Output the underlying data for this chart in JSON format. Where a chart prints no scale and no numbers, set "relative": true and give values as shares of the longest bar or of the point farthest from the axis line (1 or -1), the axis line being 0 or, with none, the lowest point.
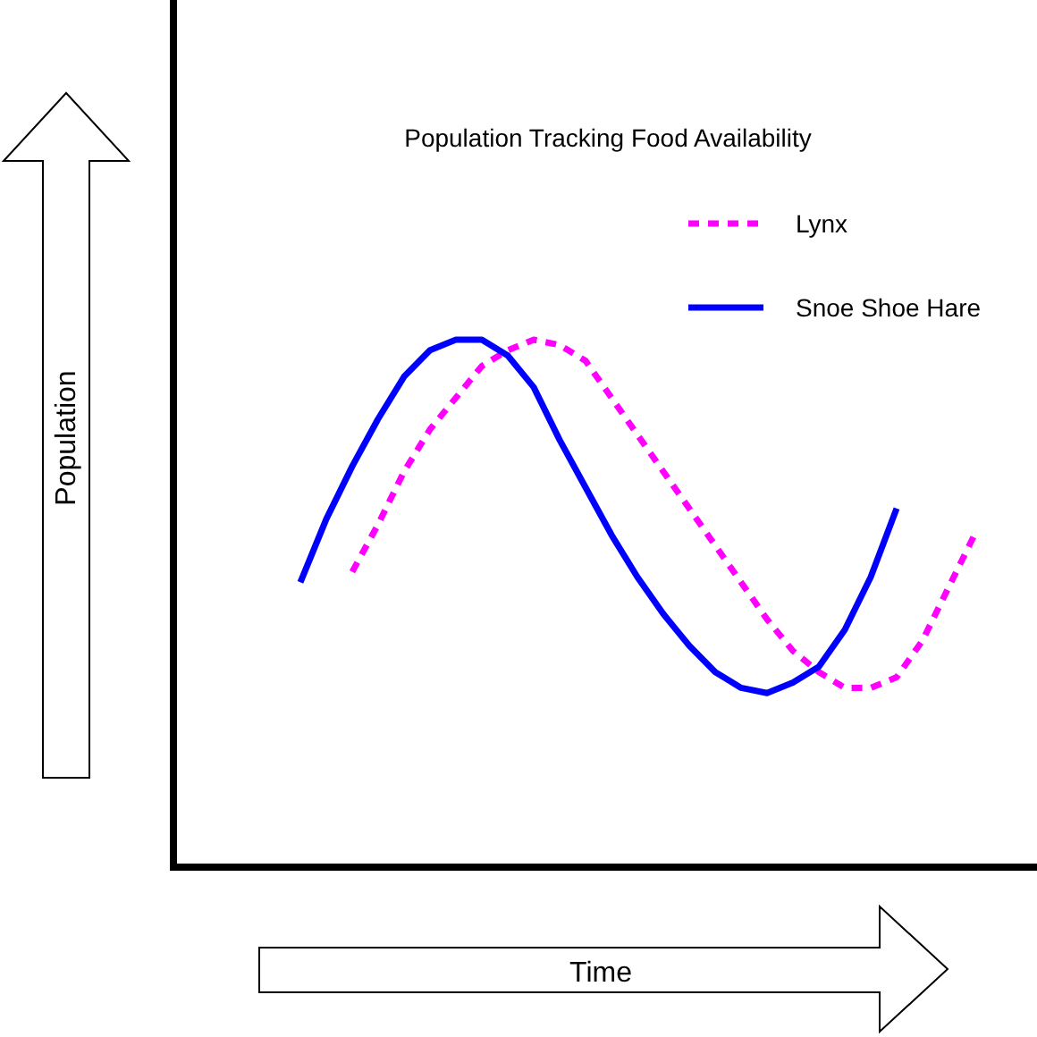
{
  "chart_data": {
    "type": "line",
    "title": "Population Tracking Food Availability",
    "xlabel": "Time",
    "annotations": [
      "Population"
    ],
    "relative": true,
    "legend": "top right",
    "marker": "none",
    "categories": [
      null,
      null,
      null,
      null,
      null,
      null,
      null,
      null,
      null,
      null,
      null,
      null,
      null,
      null,
      null,
      null,
      null,
      null,
      null,
      null,
      null,
      null,
      null,
      null,
      null,
      null,
      null
    ],
    "series": [
      {
        "name": "Lynx",
        "color": "#ff00ff",
        "line_style": "dotted",
        "values": [
          null,
          null,
          0.56,
          0.65,
          0.75,
          0.83,
          0.89,
          0.95,
          0.98,
          1.0,
          0.99,
          0.96,
          0.89,
          0.82,
          0.75,
          0.68,
          0.61,
          0.54,
          0.47,
          0.41,
          0.37,
          0.34,
          0.34,
          0.36,
          0.43,
          0.53,
          0.63
        ]
      },
      {
        "name": "Snoe Shoe Hare",
        "color": "#0000ff",
        "line_style": "solid",
        "values": [
          0.54,
          0.66,
          0.76,
          0.85,
          0.93,
          0.98,
          1.0,
          1.0,
          0.97,
          0.91,
          0.81,
          0.72,
          0.63,
          0.55,
          0.48,
          0.42,
          0.37,
          0.34,
          0.33,
          0.35,
          0.38,
          0.45,
          0.55,
          0.68,
          null,
          null,
          null
        ]
      }
    ]
  }
}
